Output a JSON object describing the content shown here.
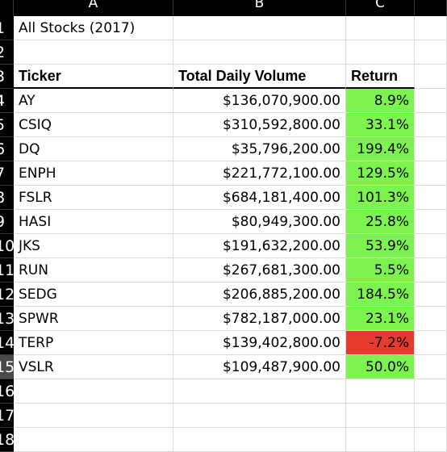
{
  "columns": [
    "A",
    "B",
    "C"
  ],
  "row_numbers": [
    "1",
    "2",
    "3",
    "4",
    "5",
    "6",
    "7",
    "8",
    "9",
    "10",
    "11",
    "12",
    "13",
    "14",
    "15",
    "16",
    "17",
    "18"
  ],
  "title": "All Stocks (2017)",
  "headers": {
    "ticker": "Ticker",
    "volume": "Total Daily Volume",
    "return": "Return"
  },
  "rows": [
    {
      "ticker": "AY",
      "volume": "$136,070,900.00",
      "return": "8.9%",
      "status": "positive"
    },
    {
      "ticker": "CSIQ",
      "volume": "$310,592,800.00",
      "return": "33.1%",
      "status": "positive"
    },
    {
      "ticker": "DQ",
      "volume": "$35,796,200.00",
      "return": "199.4%",
      "status": "positive"
    },
    {
      "ticker": "ENPH",
      "volume": "$221,772,100.00",
      "return": "129.5%",
      "status": "positive"
    },
    {
      "ticker": "FSLR",
      "volume": "$684,181,400.00",
      "return": "101.3%",
      "status": "positive"
    },
    {
      "ticker": "HASI",
      "volume": "$80,949,300.00",
      "return": "25.8%",
      "status": "positive"
    },
    {
      "ticker": "JKS",
      "volume": "$191,632,200.00",
      "return": "53.9%",
      "status": "positive"
    },
    {
      "ticker": "RUN",
      "volume": "$267,681,300.00",
      "return": "5.5%",
      "status": "positive"
    },
    {
      "ticker": "SEDG",
      "volume": "$206,885,200.00",
      "return": "184.5%",
      "status": "positive"
    },
    {
      "ticker": "SPWR",
      "volume": "$782,187,000.00",
      "return": "23.1%",
      "status": "positive"
    },
    {
      "ticker": "TERP",
      "volume": "$139,402,800.00",
      "return": "-7.2%",
      "status": "negative"
    },
    {
      "ticker": "VSLR",
      "volume": "$109,487,900.00",
      "return": "50.0%",
      "status": "positive"
    }
  ],
  "colors": {
    "positive": "#7cf34e",
    "negative": "#e8392e",
    "header_bg": "#000000"
  },
  "active_row": "15"
}
